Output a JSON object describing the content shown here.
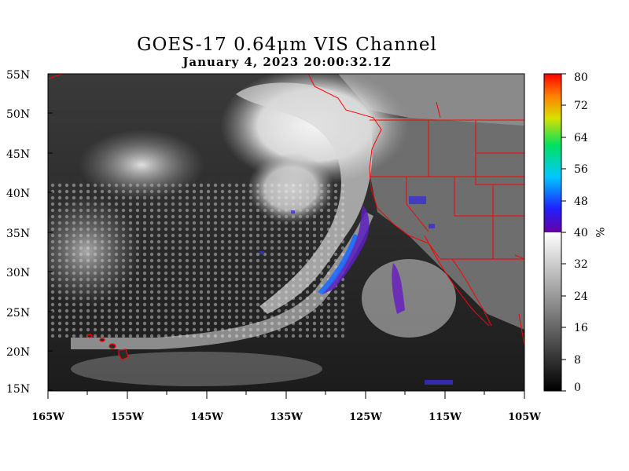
{
  "title": "GOES-17  0.64μm VIS Channel",
  "timestamp": "January  4,  2023 20:00:32.1Z",
  "lat_labels": [
    "55N",
    "50N",
    "45N",
    "40N",
    "35N",
    "30N",
    "25N",
    "20N",
    "15N"
  ],
  "lon_labels": [
    "165W",
    "155W",
    "145W",
    "135W",
    "125W",
    "115W",
    "105W"
  ],
  "colorbar": {
    "ticks": [
      "80",
      "72",
      "64",
      "56",
      "48",
      "40",
      "32",
      "24",
      "16",
      "8",
      "0"
    ],
    "unit": "%",
    "range": [
      0,
      80
    ],
    "gray_max": 40
  },
  "colors": {
    "border": "#ff0000",
    "frame": "#000000"
  }
}
